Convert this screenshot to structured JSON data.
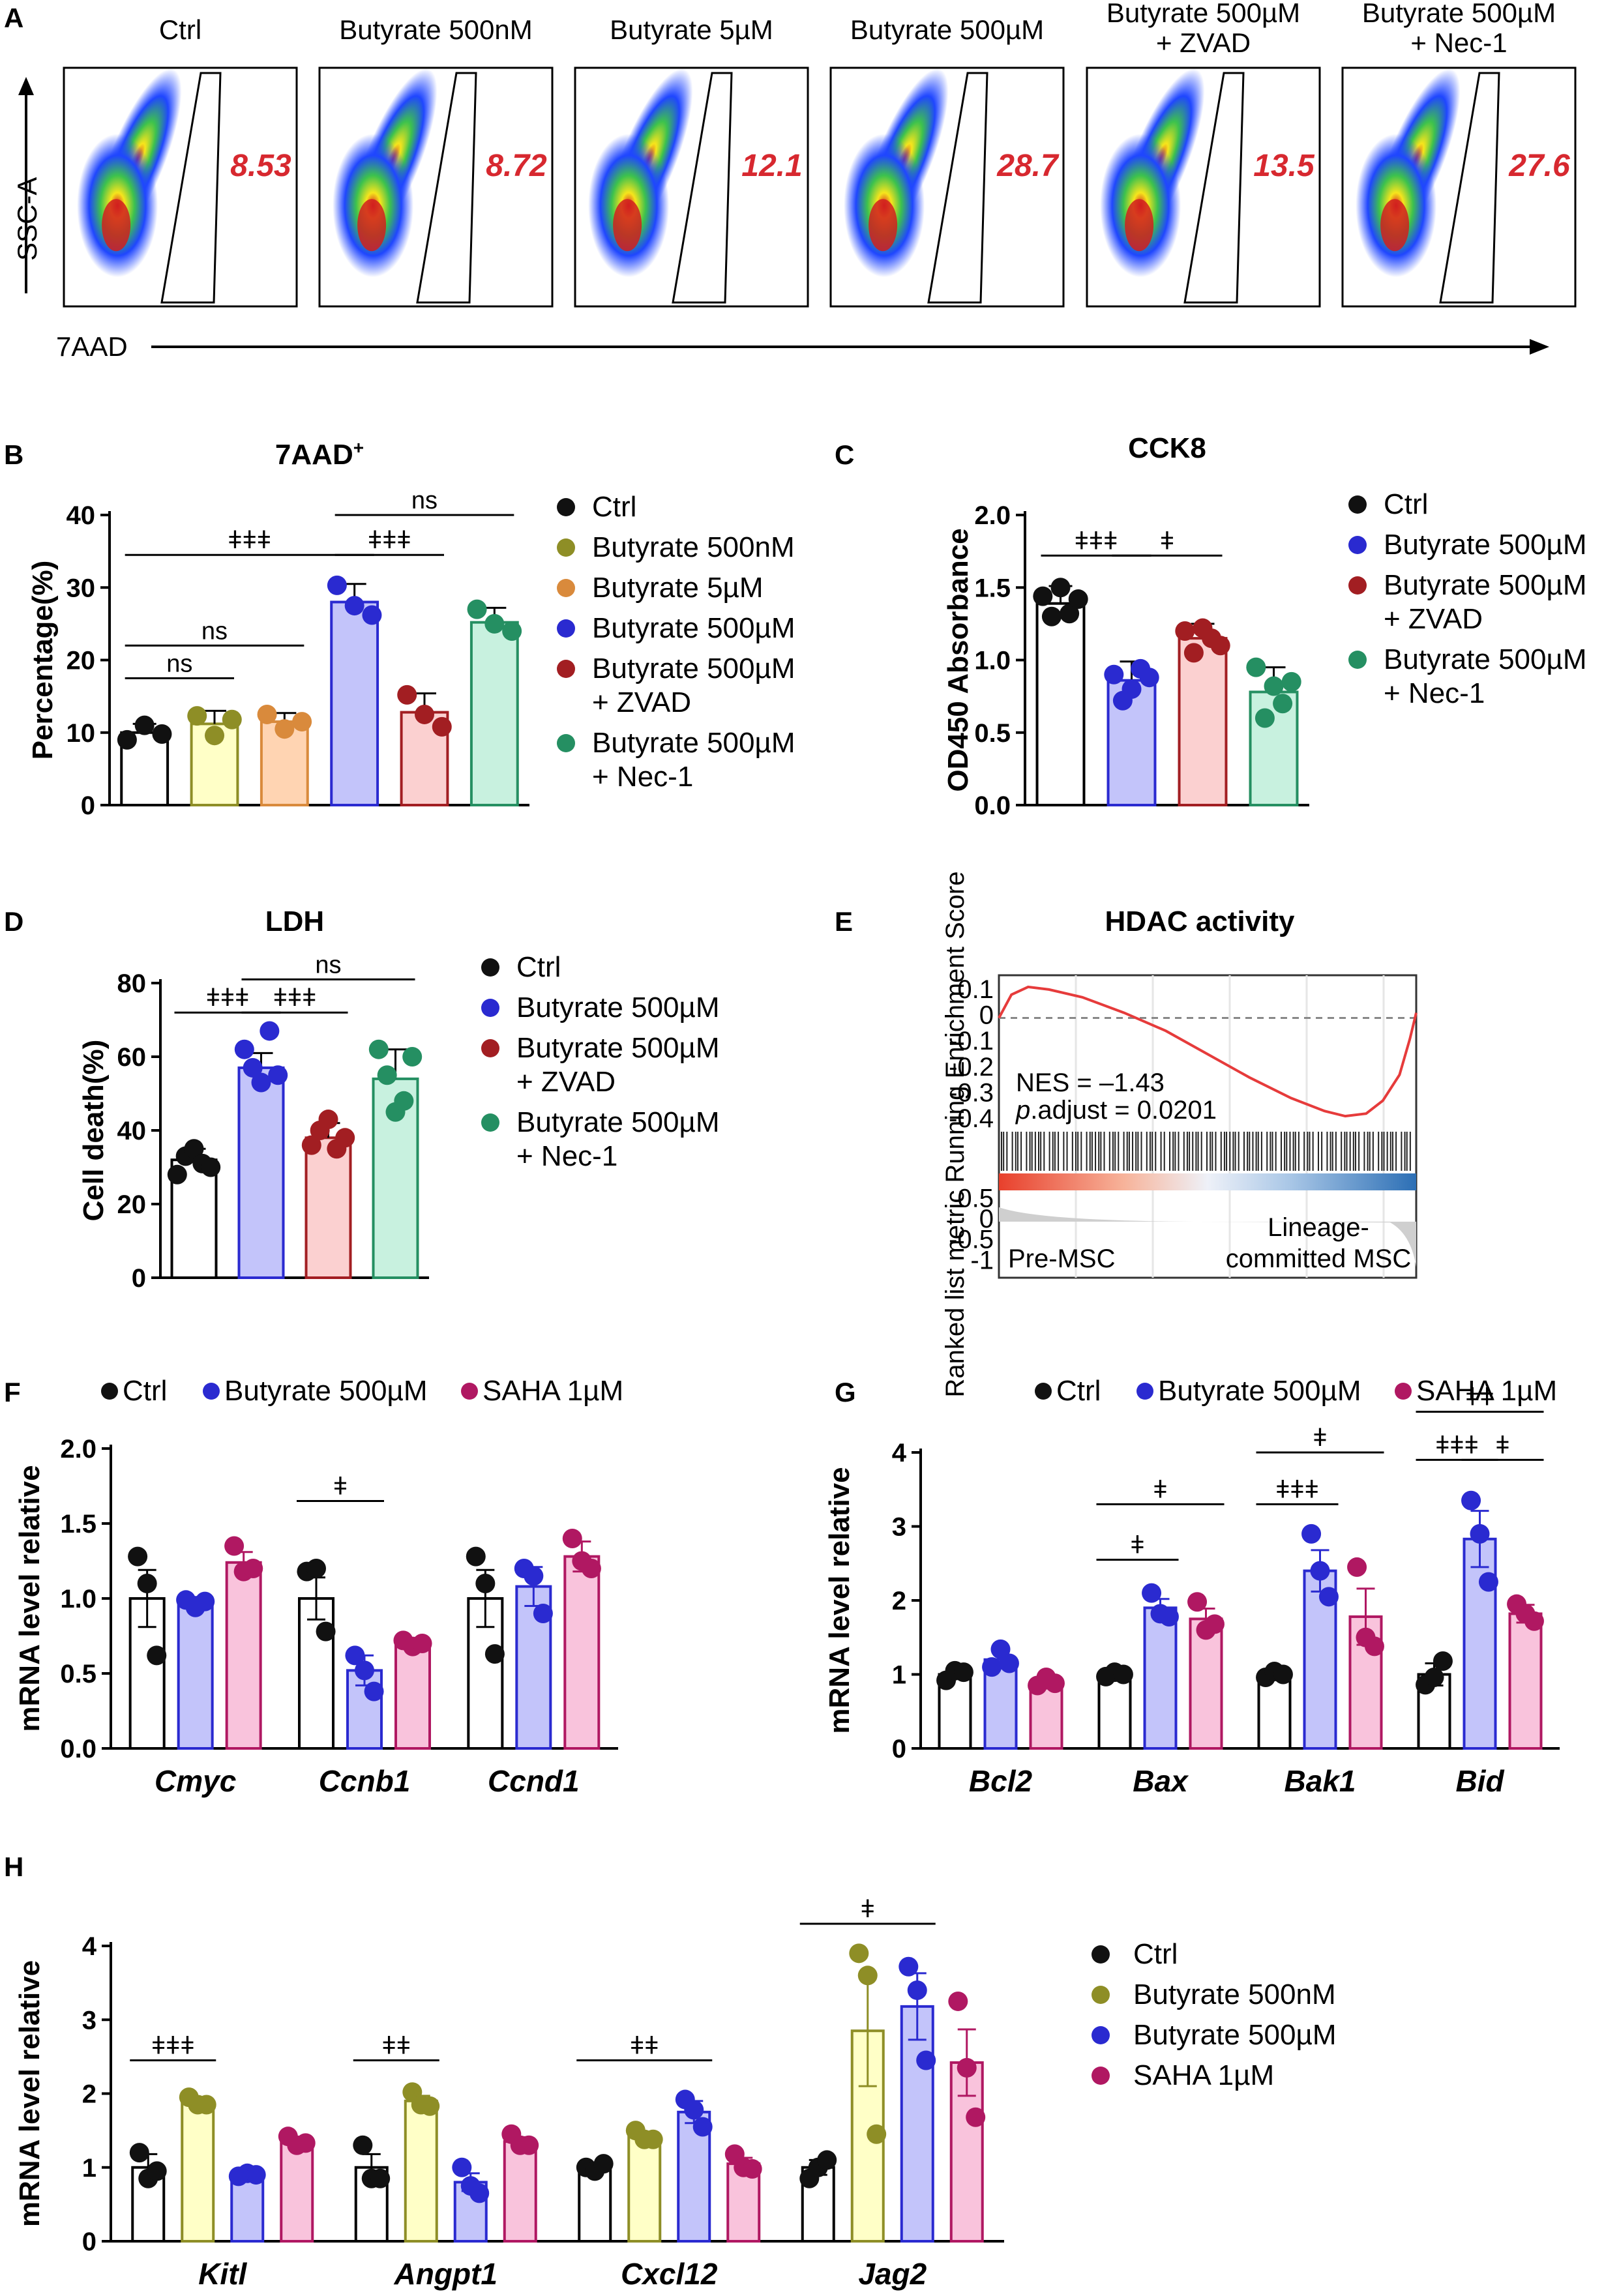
{
  "colors": {
    "ctrl": "#ffffff",
    "ctrl_dot": "#111111",
    "but500nM": "#ffffc7",
    "but500nM_dot": "#8e8e26",
    "but5uM": "#ffd4b2",
    "but5uM_dot": "#d98a3c",
    "but500uM": "#c3c4fa",
    "but500uM_dot": "#2a2ad0",
    "zvad": "#fbd0d0",
    "zvad_dot": "#a21e22",
    "nec1": "#c8f1df",
    "nec1_dot": "#258f62",
    "saha": "#f9c3dc",
    "saha_dot": "#b01862",
    "fc_value": "#d7282f"
  },
  "panelA": {
    "letter": "A",
    "y_axis_label": "SSC-A",
    "x_axis_label": "7AAD",
    "plots": [
      {
        "title": "Ctrl",
        "value": "8.53"
      },
      {
        "title": "Butyrate 500nM",
        "value": "8.72"
      },
      {
        "title": "Butyrate 5µM",
        "value": "12.1"
      },
      {
        "title": "Butyrate 500µM",
        "value": "28.7"
      },
      {
        "title": "Butyrate 500µM\n+ ZVAD",
        "value": "13.5"
      },
      {
        "title": "Butyrate 500µM\n+ Nec-1",
        "value": "27.6"
      }
    ]
  },
  "panelE": {
    "letter": "E",
    "title": "HDAC activity",
    "y_label_top": "Running Enrichment Score",
    "y_label_bottom": "Ranked list metric",
    "nes": "NES = –1.43",
    "padj_label": "p",
    "padj_rest": ".adjust = 0.0201",
    "left_label": "Pre-MSC",
    "right_label_1": "Lineage-",
    "right_label_2": "committed MSC",
    "es_ticks": [
      "0.1",
      "0",
      "-0.1",
      "-0.2",
      "-0.3",
      "-0.4"
    ],
    "rank_ticks": [
      "0.5",
      "0",
      "-0.5",
      "-1"
    ],
    "es_curve": [
      [
        0,
        0
      ],
      [
        0.03,
        0.09
      ],
      [
        0.07,
        0.12
      ],
      [
        0.12,
        0.11
      ],
      [
        0.2,
        0.08
      ],
      [
        0.3,
        0.02
      ],
      [
        0.4,
        -0.05
      ],
      [
        0.5,
        -0.14
      ],
      [
        0.6,
        -0.23
      ],
      [
        0.7,
        -0.31
      ],
      [
        0.78,
        -0.36
      ],
      [
        0.83,
        -0.38
      ],
      [
        0.88,
        -0.37
      ],
      [
        0.92,
        -0.32
      ],
      [
        0.96,
        -0.22
      ],
      [
        0.985,
        -0.08
      ],
      [
        1,
        0.02
      ]
    ]
  },
  "chart_data": [
    {
      "panel": "B",
      "type": "bar",
      "title": "7AAD",
      "title_sup": "+",
      "ylabel": "Percentage(%)",
      "ylim": [
        0,
        40
      ],
      "yticks": [
        "0",
        "10",
        "20",
        "30",
        "40"
      ],
      "ytick_values": [
        0,
        10,
        20,
        30,
        40
      ],
      "categories": [
        "Ctrl",
        "Butyrate 500nM",
        "Butyrate 5µM",
        "Butyrate 500µM",
        "Butyrate 500µM + ZVAD",
        "Butyrate 500µM + Nec-1"
      ],
      "color_keys": [
        "ctrl",
        "but500nM",
        "but5uM",
        "but500uM",
        "zvad",
        "nec1"
      ],
      "values": [
        10.0,
        11.2,
        11.5,
        28.0,
        12.8,
        25.2
      ],
      "errors": [
        1.2,
        1.8,
        1.2,
        2.5,
        2.6,
        2.0
      ],
      "points": [
        [
          9.0,
          11.0,
          9.8
        ],
        [
          12.3,
          9.6,
          11.8
        ],
        [
          12.5,
          10.5,
          11.5
        ],
        [
          30.3,
          27.5,
          26.2
        ],
        [
          15.2,
          12.5,
          10.8
        ],
        [
          27.0,
          25.0,
          24.0
        ]
      ],
      "legend": [
        {
          "line1": "Ctrl",
          "line2": "",
          "key": "ctrl"
        },
        {
          "line1": "Butyrate 500nM",
          "line2": "",
          "key": "but500nM"
        },
        {
          "line1": "Butyrate 5µM",
          "line2": "",
          "key": "but5uM"
        },
        {
          "line1": "Butyrate 500µM",
          "line2": "",
          "key": "but500uM"
        },
        {
          "line1": "Butyrate 500µM",
          "line2": "+ ZVAD",
          "key": "zvad"
        },
        {
          "line1": "Butyrate 500µM",
          "line2": "+ Nec-1",
          "key": "nec1"
        }
      ],
      "sig": [
        {
          "from": 0,
          "to": 1,
          "level": 17.5,
          "label": "ns"
        },
        {
          "from": 0,
          "to": 2,
          "level": 22.0,
          "label": "ns"
        },
        {
          "from": 0,
          "to": 3,
          "level": 34.5,
          "label": "ǂǂǂ"
        },
        {
          "from": 3,
          "to": 4,
          "level": 34.5,
          "label": "ǂǂǂ"
        },
        {
          "from": 3,
          "to": 5,
          "level": 40.0,
          "label": "ns"
        }
      ]
    },
    {
      "panel": "C",
      "type": "bar",
      "title": "CCK8",
      "ylabel": "OD450 Absorbance",
      "ylim": [
        0,
        2.0
      ],
      "yticks": [
        "0.0",
        "0.5",
        "1.0",
        "1.5",
        "2.0"
      ],
      "ytick_values": [
        0,
        0.5,
        1.0,
        1.5,
        2.0
      ],
      "categories": [
        "Ctrl",
        "Butyrate 500µM",
        "Butyrate 500µM + ZVAD",
        "Butyrate 500µM + Nec-1"
      ],
      "color_keys": [
        "ctrl",
        "but500uM",
        "zvad",
        "nec1"
      ],
      "values": [
        1.39,
        0.86,
        1.15,
        0.78
      ],
      "errors": [
        0.12,
        0.13,
        0.1,
        0.17
      ],
      "points": [
        [
          1.44,
          1.3,
          1.5,
          1.32,
          1.42
        ],
        [
          0.9,
          0.72,
          0.8,
          0.94,
          0.88
        ],
        [
          1.2,
          1.05,
          1.22,
          1.15,
          1.1
        ],
        [
          0.95,
          0.6,
          0.82,
          0.7,
          0.85
        ]
      ],
      "legend": [
        {
          "line1": "Ctrl",
          "line2": "",
          "key": "ctrl"
        },
        {
          "line1": "Butyrate 500µM",
          "line2": "",
          "key": "but500uM"
        },
        {
          "line1": "Butyrate 500µM",
          "line2": "+ ZVAD",
          "key": "zvad"
        },
        {
          "line1": "Butyrate 500µM",
          "line2": "+ Nec-1",
          "key": "nec1"
        }
      ],
      "sig": [
        {
          "from": 0,
          "to": 1,
          "level": 1.72,
          "label": "ǂǂǂ"
        },
        {
          "from": 1,
          "to": 2,
          "level": 1.72,
          "label": "ǂ"
        }
      ]
    },
    {
      "panel": "D",
      "type": "bar",
      "title": "LDH",
      "ylabel": "Cell death(%)",
      "ylim": [
        0,
        80
      ],
      "yticks": [
        "0",
        "20",
        "40",
        "60",
        "80"
      ],
      "ytick_values": [
        0,
        20,
        40,
        60,
        80
      ],
      "categories": [
        "Ctrl",
        "Butyrate 500µM",
        "Butyrate 500µM + ZVAD",
        "Butyrate 500µM + Nec-1"
      ],
      "color_keys": [
        "ctrl",
        "but500uM",
        "zvad",
        "nec1"
      ],
      "values": [
        32.0,
        57.0,
        38.0,
        54.0
      ],
      "errors": [
        3.0,
        4.0,
        4.0,
        8.0
      ],
      "points": [
        [
          28,
          33,
          35,
          31,
          30
        ],
        [
          62,
          57,
          53,
          67,
          55
        ],
        [
          36,
          40,
          43,
          35,
          38
        ],
        [
          62,
          55,
          45,
          48,
          60
        ]
      ],
      "legend": [
        {
          "line1": "Ctrl",
          "line2": "",
          "key": "ctrl"
        },
        {
          "line1": "Butyrate 500µM",
          "line2": "",
          "key": "but500uM"
        },
        {
          "line1": "Butyrate 500µM",
          "line2": "+ ZVAD",
          "key": "zvad"
        },
        {
          "line1": "Butyrate 500µM",
          "line2": "+ Nec-1",
          "key": "nec1"
        }
      ],
      "sig": [
        {
          "from": 0,
          "to": 1,
          "level": 72,
          "label": "ǂǂǂ"
        },
        {
          "from": 1,
          "to": 2,
          "level": 72,
          "label": "ǂǂǂ"
        },
        {
          "from": 1,
          "to": 3,
          "level": 81,
          "label": "ns"
        }
      ]
    },
    {
      "panel": "F",
      "type": "bar",
      "title": "",
      "ylabel": "mRNA level relative",
      "ylim": [
        0,
        2.0
      ],
      "yticks": [
        "0.0",
        "0.5",
        "1.0",
        "1.5",
        "2.0"
      ],
      "ytick_values": [
        0,
        0.5,
        1.0,
        1.5,
        2.0
      ],
      "genes": [
        "Cmyc",
        "Ccnb1",
        "Ccnd1"
      ],
      "series_names": [
        "Ctrl",
        "Butyrate 500µM",
        "SAHA 1µM"
      ],
      "color_keys": [
        "ctrl",
        "but500uM",
        "saha"
      ],
      "values": [
        [
          1.0,
          0.97,
          1.24
        ],
        [
          1.0,
          0.52,
          0.7
        ],
        [
          1.0,
          1.08,
          1.28
        ]
      ],
      "errors": [
        [
          0.19,
          0.04,
          0.07
        ],
        [
          0.14,
          0.1,
          0.03
        ],
        [
          0.19,
          0.13,
          0.1
        ]
      ],
      "points": [
        [
          [
            1.28,
            1.1,
            0.62
          ],
          [
            0.99,
            0.94,
            0.98
          ],
          [
            1.35,
            1.18,
            1.2
          ]
        ],
        [
          [
            1.18,
            1.2,
            0.78
          ],
          [
            0.62,
            0.52,
            0.38
          ],
          [
            0.72,
            0.68,
            0.7
          ]
        ],
        [
          [
            1.28,
            1.1,
            0.63
          ],
          [
            1.2,
            1.15,
            0.9
          ],
          [
            1.4,
            1.25,
            1.2
          ]
        ]
      ],
      "sig": [
        {
          "gene": 1,
          "from": 0,
          "to": 1,
          "level": 1.65,
          "label": "ǂ"
        }
      ]
    },
    {
      "panel": "G",
      "type": "bar",
      "title": "",
      "ylabel": "mRNA level relative",
      "ylim": [
        0,
        4
      ],
      "yticks": [
        "0",
        "1",
        "2",
        "3",
        "4"
      ],
      "ytick_values": [
        0,
        1,
        2,
        3,
        4
      ],
      "genes": [
        "Bcl2",
        "Bax",
        "Bak1",
        "Bid"
      ],
      "series_names": [
        "Ctrl",
        "Butyrate 500µM",
        "SAHA 1µM"
      ],
      "color_keys": [
        "ctrl",
        "but500uM",
        "saha"
      ],
      "values": [
        [
          1.0,
          1.2,
          0.9
        ],
        [
          1.0,
          1.9,
          1.75
        ],
        [
          1.0,
          2.4,
          1.78
        ],
        [
          1.0,
          2.83,
          1.82
        ]
      ],
      "errors": [
        [
          0.06,
          0.12,
          0.09
        ],
        [
          0.04,
          0.12,
          0.14
        ],
        [
          0.04,
          0.28,
          0.38
        ],
        [
          0.15,
          0.38,
          0.12
        ]
      ],
      "points": [
        [
          [
            0.92,
            1.05,
            1.03
          ],
          [
            1.1,
            1.34,
            1.15
          ],
          [
            0.85,
            0.96,
            0.88
          ]
        ],
        [
          [
            0.97,
            1.03,
            1.0
          ],
          [
            2.1,
            1.82,
            1.78
          ],
          [
            1.98,
            1.6,
            1.68
          ]
        ],
        [
          [
            0.96,
            1.04,
            1.0
          ],
          [
            2.9,
            2.4,
            2.05
          ],
          [
            2.45,
            1.5,
            1.38
          ]
        ],
        [
          [
            0.86,
            0.96,
            1.18
          ],
          [
            3.35,
            2.9,
            2.25
          ],
          [
            1.95,
            1.82,
            1.72
          ]
        ]
      ],
      "sig": [
        {
          "gene": 1,
          "from": 0,
          "to": 1,
          "level": 2.55,
          "label": "ǂ"
        },
        {
          "gene": 1,
          "from": 0,
          "to": 2,
          "level": 3.3,
          "label": "ǂ"
        },
        {
          "gene": 2,
          "from": 0,
          "to": 1,
          "level": 3.3,
          "label": "ǂǂǂ"
        },
        {
          "gene": 2,
          "from": 0,
          "to": 2,
          "level": 4.0,
          "label": "ǂ"
        },
        {
          "gene": 3,
          "from": 0,
          "to": 1,
          "level": 3.9,
          "label": "ǂǂǂ"
        },
        {
          "gene": 3,
          "from": 1,
          "to": 2,
          "level": 3.9,
          "label": "ǂ"
        },
        {
          "gene": 3,
          "from": 0,
          "to": 2,
          "level": 4.55,
          "label": "ǂǂ"
        }
      ]
    },
    {
      "panel": "H",
      "type": "bar",
      "title": "",
      "ylabel": "mRNA level relative",
      "ylim": [
        0,
        4
      ],
      "yticks": [
        "0",
        "1",
        "2",
        "3",
        "4"
      ],
      "ytick_values": [
        0,
        1,
        2,
        3,
        4
      ],
      "genes": [
        "Kitl",
        "Angpt1",
        "Cxcl12",
        "Jag2"
      ],
      "series_names": [
        "Ctrl",
        "Butyrate 500nM",
        "Butyrate 500µM",
        "SAHA 1µM"
      ],
      "color_keys": [
        "ctrl",
        "but500nM",
        "but500uM",
        "saha"
      ],
      "values": [
        [
          1.0,
          1.88,
          0.9,
          1.35
        ],
        [
          1.0,
          1.9,
          0.8,
          1.35
        ],
        [
          1.0,
          1.42,
          1.75,
          1.05
        ],
        [
          1.0,
          2.85,
          3.18,
          2.42
        ]
      ],
      "errors": [
        [
          0.18,
          0.05,
          0.05,
          0.06
        ],
        [
          0.18,
          0.07,
          0.12,
          0.06
        ],
        [
          0.05,
          0.06,
          0.15,
          0.08
        ],
        [
          0.1,
          0.75,
          0.45,
          0.45
        ]
      ],
      "points": [
        [
          [
            1.2,
            0.85,
            0.95
          ],
          [
            1.95,
            1.85,
            1.85
          ],
          [
            0.88,
            0.92,
            0.9
          ],
          [
            1.42,
            1.3,
            1.33
          ]
        ],
        [
          [
            1.3,
            0.85,
            0.85
          ],
          [
            2.02,
            1.85,
            1.83
          ],
          [
            1.0,
            0.75,
            0.65
          ],
          [
            1.45,
            1.3,
            1.3
          ]
        ],
        [
          [
            1.0,
            0.95,
            1.05
          ],
          [
            1.5,
            1.38,
            1.38
          ],
          [
            1.92,
            1.78,
            1.55
          ],
          [
            1.18,
            1.0,
            0.98
          ]
        ],
        [
          [
            0.85,
            1.0,
            1.1
          ],
          [
            3.9,
            3.6,
            1.45
          ],
          [
            3.72,
            3.4,
            2.45
          ],
          [
            3.25,
            2.35,
            1.68
          ]
        ]
      ],
      "sig": [
        {
          "gene": 0,
          "from": 0,
          "to": 1,
          "level": 2.45,
          "label": "ǂǂǂ"
        },
        {
          "gene": 1,
          "from": 0,
          "to": 1,
          "level": 2.45,
          "label": "ǂǂ"
        },
        {
          "gene": 2,
          "from": 0,
          "to": 2,
          "level": 2.45,
          "label": "ǂǂ"
        },
        {
          "gene": 3,
          "from": 0,
          "to": 2,
          "level": 4.3,
          "label": "ǂ"
        }
      ]
    }
  ]
}
